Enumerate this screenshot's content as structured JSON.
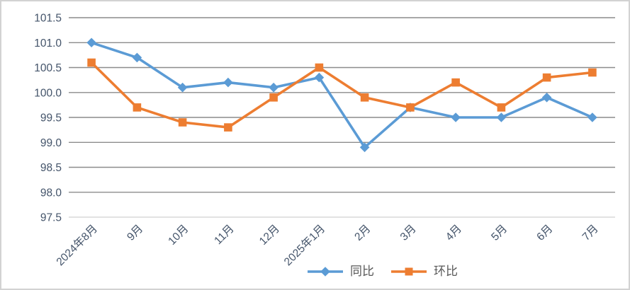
{
  "chart_data": {
    "type": "line",
    "title": "",
    "xlabel": "",
    "ylabel": "",
    "categories": [
      "2024年8月",
      "9月",
      "10月",
      "11月",
      "12月",
      "2025年1月",
      "2月",
      "3月",
      "4月",
      "5月",
      "6月",
      "7月"
    ],
    "series": [
      {
        "name": "同比",
        "marker": "diamond",
        "color": "#5B9BD5",
        "values": [
          101.0,
          100.7,
          100.1,
          100.2,
          100.1,
          100.3,
          98.9,
          99.7,
          99.5,
          99.5,
          99.9,
          99.5
        ]
      },
      {
        "name": "环比",
        "marker": "square",
        "color": "#ED7D31",
        "values": [
          100.6,
          99.7,
          99.4,
          99.3,
          99.9,
          100.5,
          99.9,
          99.7,
          100.2,
          99.7,
          100.3,
          100.4
        ]
      }
    ],
    "ylim": [
      97.5,
      101.5
    ],
    "ytick_step": 0.5,
    "yticks": [
      "101.5",
      "101.0",
      "100.5",
      "100.0",
      "99.5",
      "99.0",
      "98.5",
      "98.0",
      "97.5"
    ],
    "grid": true,
    "legend_position": "bottom",
    "colors": {
      "gridline": "#8C8C8C",
      "axis_line": "#D9D9D9",
      "tick_label": "#44546A",
      "legend_text": "#595959",
      "frame_border": "#D2D2D2",
      "background": "#FFFFFF"
    }
  }
}
